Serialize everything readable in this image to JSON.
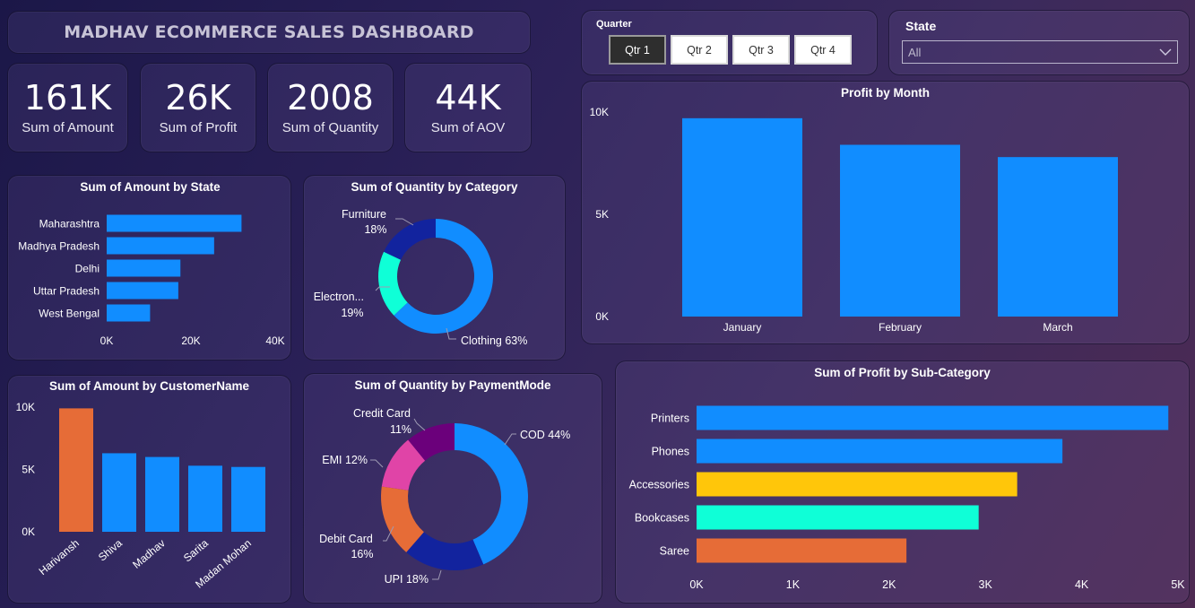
{
  "header": {
    "title": "MADHAV ECOMMERCE SALES DASHBOARD"
  },
  "kpis": [
    {
      "value": "161K",
      "label": "Sum of Amount"
    },
    {
      "value": "26K",
      "label": "Sum of Profit"
    },
    {
      "value": "2008",
      "label": "Sum of Quantity"
    },
    {
      "value": "44K",
      "label": "Sum of AOV"
    }
  ],
  "slicers": {
    "quarter": {
      "label": "Quarter",
      "options": [
        "Qtr 1",
        "Qtr 2",
        "Qtr 3",
        "Qtr 4"
      ],
      "selected": "Qtr 1"
    },
    "state": {
      "label": "State",
      "value": "All"
    }
  },
  "colors": {
    "blue": "#118DFF",
    "orange": "#E66C37",
    "yellow": "#FFC60A",
    "teal": "#0FFFD7",
    "navy": "#12239E",
    "magenta": "#E044A7",
    "purple": "#6B007B"
  },
  "chart_data": [
    {
      "id": "amount_by_state",
      "type": "bar",
      "orientation": "horizontal",
      "title": "Sum of Amount by State",
      "categories": [
        "Maharashtra",
        "Madhya Pradesh",
        "Delhi",
        "Uttar Pradesh",
        "West Bengal"
      ],
      "values": [
        32000,
        25500,
        17500,
        17000,
        10300
      ],
      "xlim": [
        0,
        40000
      ],
      "ticks": [
        0,
        20000,
        40000
      ],
      "tick_labels": [
        "0K",
        "20K",
        "40K"
      ]
    },
    {
      "id": "quantity_by_category",
      "type": "pie",
      "donut": true,
      "title": "Sum of Quantity by Category",
      "slices": [
        {
          "name": "Clothing",
          "label": "Clothing 63%",
          "value": 63,
          "color": "#118DFF"
        },
        {
          "name": "Electronics",
          "label": "Electron...",
          "pct": "19%",
          "value": 19,
          "color": "#0FFFD7"
        },
        {
          "name": "Furniture",
          "label": "Furniture",
          "pct": "18%",
          "value": 18,
          "color": "#12239E"
        }
      ]
    },
    {
      "id": "profit_by_month",
      "type": "bar",
      "title": "Profit by Month",
      "categories": [
        "January",
        "February",
        "March"
      ],
      "values": [
        9700,
        8400,
        7800
      ],
      "ylim": [
        0,
        10000
      ],
      "ticks": [
        0,
        5000,
        10000
      ],
      "tick_labels": [
        "0K",
        "5K",
        "10K"
      ]
    },
    {
      "id": "amount_by_customer",
      "type": "bar",
      "title": "Sum of Amount by CustomerName",
      "categories": [
        "Harivansh",
        "Shiva",
        "Madhav",
        "Sarita",
        "Madan Mohan"
      ],
      "values": [
        9900,
        6300,
        6000,
        5300,
        5200
      ],
      "highlight_index": 0,
      "ylim": [
        0,
        10000
      ],
      "ticks": [
        0,
        5000,
        10000
      ],
      "tick_labels": [
        "0K",
        "5K",
        "10K"
      ]
    },
    {
      "id": "quantity_by_paymentmode",
      "type": "pie",
      "donut": true,
      "title": "Sum of Quantity by PaymentMode",
      "slices": [
        {
          "name": "COD",
          "label": "COD 44%",
          "value": 44,
          "color": "#118DFF"
        },
        {
          "name": "UPI",
          "label": "UPI 18%",
          "value": 18,
          "color": "#12239E"
        },
        {
          "name": "Debit Card",
          "label": "Debit Card",
          "pct": "16%",
          "value": 16,
          "color": "#E66C37"
        },
        {
          "name": "EMI",
          "label": "EMI 12%",
          "value": 12,
          "color": "#E044A7"
        },
        {
          "name": "Credit Card",
          "label": "Credit Card",
          "pct": "11%",
          "value": 11,
          "color": "#6B007B"
        }
      ]
    },
    {
      "id": "profit_by_subcategory",
      "type": "bar",
      "orientation": "horizontal",
      "title": "Sum of Profit by Sub-Category",
      "categories": [
        "Printers",
        "Phones",
        "Accessories",
        "Bookcases",
        "Saree"
      ],
      "values": [
        4900,
        3800,
        3330,
        2930,
        2180
      ],
      "colors": [
        "#118DFF",
        "#118DFF",
        "#FFC60A",
        "#0FFFD7",
        "#E66C37"
      ],
      "xlim": [
        0,
        5000
      ],
      "ticks": [
        0,
        1000,
        2000,
        3000,
        4000,
        5000
      ],
      "tick_labels": [
        "0K",
        "1K",
        "2K",
        "3K",
        "4K",
        "5K"
      ]
    }
  ]
}
